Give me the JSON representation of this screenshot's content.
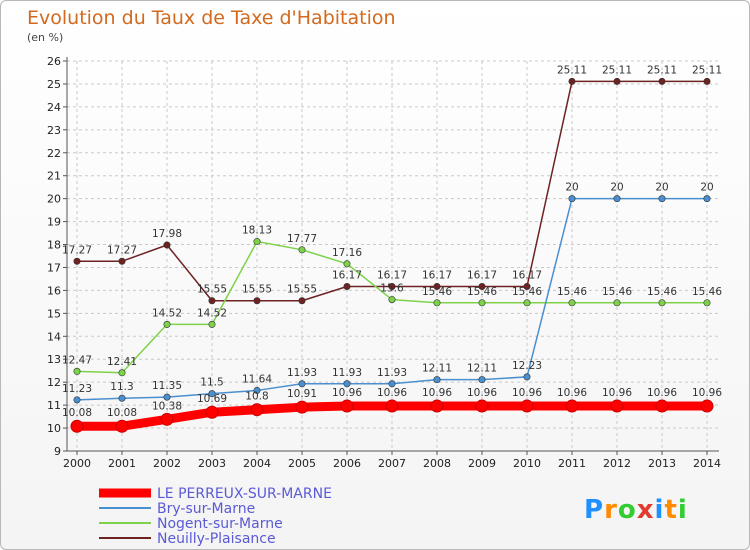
{
  "chart_data": {
    "type": "line",
    "title": "Evolution du Taux de Taxe d'Habitation",
    "subtitle": "(en %)",
    "x": [
      "2000",
      "2001",
      "2002",
      "2003",
      "2004",
      "2005",
      "2006",
      "2007",
      "2008",
      "2009",
      "2010",
      "2011",
      "2012",
      "2013",
      "2014"
    ],
    "ylim": [
      9,
      26
    ],
    "yticks": [
      9,
      10,
      11,
      12,
      13,
      14,
      15,
      16,
      17,
      18,
      19,
      20,
      21,
      22,
      23,
      24,
      25,
      26
    ],
    "grid": true,
    "legend_position": "bottom-left",
    "series": [
      {
        "name": "LE PERREUX-SUR-MARNE",
        "color": "#ff0000",
        "values": [
          10.08,
          10.08,
          10.38,
          10.69,
          10.8,
          10.91,
          10.96,
          10.96,
          10.96,
          10.96,
          10.96,
          10.96,
          10.96,
          10.96,
          10.96
        ],
        "labels": [
          "10.08",
          "10.08",
          "10.38",
          "10.69",
          "10.8",
          "10.91",
          "10.96",
          "10.96",
          "10.96",
          "10.96",
          "10.96",
          "10.96",
          "10.96",
          "10.96",
          "10.96"
        ]
      },
      {
        "name": "Bry-sur-Marne",
        "color": "#4a8fd0",
        "values": [
          11.23,
          11.3,
          11.35,
          11.5,
          11.64,
          11.93,
          11.93,
          11.93,
          12.11,
          12.11,
          12.23,
          20,
          20,
          20,
          20
        ],
        "labels": [
          "11.23",
          "11.3",
          "11.35",
          "11.5",
          "11.64",
          "11.93",
          "11.93",
          "11.93",
          "12.11",
          "12.11",
          "12.23",
          "20",
          "20",
          "20",
          "20"
        ]
      },
      {
        "name": "Nogent-sur-Marne",
        "color": "#7ed24a",
        "values": [
          12.47,
          12.41,
          14.52,
          14.52,
          18.13,
          17.77,
          17.16,
          15.6,
          15.46,
          15.46,
          15.46,
          15.46,
          15.46,
          15.46,
          15.46
        ],
        "labels": [
          "12.47",
          "12.41",
          "14.52",
          "14.52",
          "18.13",
          "17.77",
          "17.16",
          "15.6",
          "15.46",
          "15.46",
          "15.46",
          "15.46",
          "15.46",
          "15.46",
          "15.46"
        ]
      },
      {
        "name": "Neuilly-Plaisance",
        "color": "#6e2222",
        "values": [
          17.27,
          17.27,
          17.98,
          15.55,
          15.55,
          15.55,
          16.17,
          16.17,
          16.17,
          16.17,
          16.17,
          25.11,
          25.11,
          25.11,
          25.11
        ],
        "labels": [
          "17.27",
          "17.27",
          "17.98",
          "15.55",
          "15.55",
          "15.55",
          "16.17",
          "16.17",
          "16.17",
          "16.17",
          "16.17",
          "25.11",
          "25.11",
          "25.11",
          "25.11"
        ]
      }
    ]
  },
  "logo": {
    "text": "Proxiti",
    "colors": [
      "#1e90ff",
      "#ff8c00",
      "#32cd32",
      "#e03c31",
      "#1e90ff",
      "#ff8c00",
      "#32cd32"
    ]
  }
}
